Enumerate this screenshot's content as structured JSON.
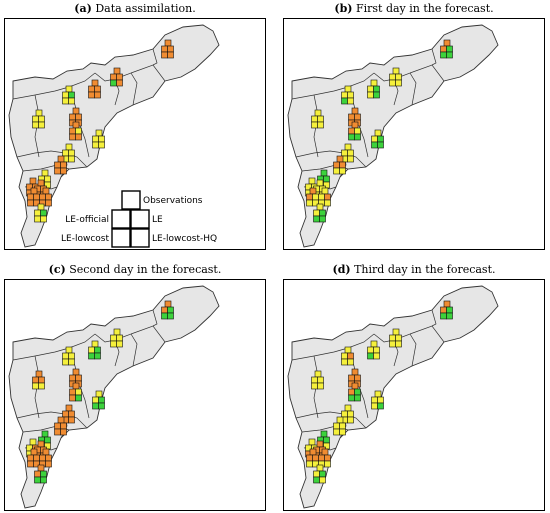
{
  "panels": [
    {
      "id": "a",
      "letter": "(a)",
      "caption": "Data assimilation.",
      "legend": true
    },
    {
      "id": "b",
      "letter": "(b)",
      "caption": "First day in the forecast.",
      "legend": false
    },
    {
      "id": "c",
      "letter": "(c)",
      "caption": "Second day in the forecast.",
      "legend": false
    },
    {
      "id": "d",
      "letter": "(d)",
      "caption": "Third day in the forecast.",
      "legend": false
    }
  ],
  "legend": {
    "observations": "Observations",
    "le": "LE",
    "le_official": "LE-official",
    "le_lowcost": "LE-lowcost",
    "le_lowcost_hq": "LE-lowcost-HQ"
  },
  "colors": {
    "region_fill": "#e6e6e6",
    "border": "#333333",
    "orange": "#f08c32",
    "yellow": "#f5f03c",
    "green": "#3cd23c"
  },
  "stations": {
    "a": [
      [
        "orange",
        "orange",
        "orange",
        "orange"
      ],
      [
        "orange",
        "orange",
        "green",
        "orange"
      ],
      [
        "orange",
        "orange",
        "orange",
        "orange"
      ],
      [
        "yellow",
        "green",
        "yellow",
        "yellow"
      ],
      [
        "yellow",
        "yellow",
        "yellow",
        "yellow"
      ],
      [
        "orange",
        "orange",
        "orange",
        "orange"
      ],
      [
        "orange",
        "yellow",
        "orange",
        "orange"
      ],
      [
        "yellow",
        "yellow",
        "yellow",
        "yellow"
      ],
      [
        "yellow",
        "yellow",
        "yellow",
        "yellow"
      ],
      [
        "orange",
        "orange",
        "orange",
        "orange"
      ],
      [
        "yellow",
        "yellow",
        "yellow",
        "yellow"
      ],
      [
        "orange",
        "orange",
        "orange",
        "orange"
      ],
      [
        "orange",
        "orange",
        "orange",
        "orange"
      ],
      [
        "orange",
        "orange",
        "orange",
        "orange"
      ],
      [
        "orange",
        "orange",
        "orange",
        "orange"
      ],
      [
        "yellow",
        "green",
        "yellow",
        "yellow"
      ]
    ],
    "b": [
      [
        "orange",
        "green",
        "green",
        "green"
      ],
      [
        "yellow",
        "yellow",
        "yellow",
        "yellow"
      ],
      [
        "yellow",
        "green",
        "yellow",
        "green"
      ],
      [
        "yellow",
        "yellow",
        "green",
        "yellow"
      ],
      [
        "yellow",
        "yellow",
        "yellow",
        "yellow"
      ],
      [
        "orange",
        "orange",
        "orange",
        "orange"
      ],
      [
        "orange",
        "yellow",
        "green",
        "green"
      ],
      [
        "yellow",
        "green",
        "green",
        "green"
      ],
      [
        "yellow",
        "yellow",
        "yellow",
        "yellow"
      ],
      [
        "orange",
        "orange",
        "yellow",
        "yellow"
      ],
      [
        "green",
        "green",
        "yellow",
        "yellow"
      ],
      [
        "yellow",
        "yellow",
        "yellow",
        "yellow"
      ],
      [
        "yellow",
        "yellow",
        "yellow",
        "yellow"
      ],
      [
        "orange",
        "yellow",
        "yellow",
        "yellow"
      ],
      [
        "yellow",
        "orange",
        "yellow",
        "yellow"
      ],
      [
        "yellow",
        "green",
        "green",
        "green"
      ]
    ],
    "c": [
      [
        "orange",
        "green",
        "green",
        "green"
      ],
      [
        "yellow",
        "yellow",
        "yellow",
        "yellow"
      ],
      [
        "yellow",
        "green",
        "green",
        "green"
      ],
      [
        "yellow",
        "yellow",
        "yellow",
        "yellow"
      ],
      [
        "orange",
        "orange",
        "yellow",
        "yellow"
      ],
      [
        "orange",
        "orange",
        "orange",
        "orange"
      ],
      [
        "orange",
        "yellow",
        "orange",
        "green"
      ],
      [
        "yellow",
        "green",
        "green",
        "green"
      ],
      [
        "orange",
        "orange",
        "orange",
        "orange"
      ],
      [
        "orange",
        "orange",
        "orange",
        "orange"
      ],
      [
        "green",
        "green",
        "yellow",
        "yellow"
      ],
      [
        "yellow",
        "orange",
        "yellow",
        "yellow"
      ],
      [
        "orange",
        "orange",
        "orange",
        "orange"
      ],
      [
        "orange",
        "orange",
        "orange",
        "orange"
      ],
      [
        "orange",
        "orange",
        "orange",
        "orange"
      ],
      [
        "orange",
        "green",
        "green",
        "green"
      ]
    ],
    "d": [
      [
        "orange",
        "green",
        "green",
        "green"
      ],
      [
        "yellow",
        "yellow",
        "yellow",
        "yellow"
      ],
      [
        "yellow",
        "yellow",
        "green",
        "yellow"
      ],
      [
        "yellow",
        "orange",
        "yellow",
        "yellow"
      ],
      [
        "yellow",
        "yellow",
        "yellow",
        "yellow"
      ],
      [
        "orange",
        "orange",
        "orange",
        "orange"
      ],
      [
        "orange",
        "green",
        "green",
        "green"
      ],
      [
        "yellow",
        "yellow",
        "yellow",
        "green"
      ],
      [
        "yellow",
        "yellow",
        "yellow",
        "yellow"
      ],
      [
        "yellow",
        "yellow",
        "yellow",
        "yellow"
      ],
      [
        "green",
        "green",
        "yellow",
        "yellow"
      ],
      [
        "yellow",
        "yellow",
        "orange",
        "yellow"
      ],
      [
        "orange",
        "orange",
        "orange",
        "orange"
      ],
      [
        "orange",
        "orange",
        "yellow",
        "yellow"
      ],
      [
        "orange",
        "orange",
        "yellow",
        "yellow"
      ],
      [
        "yellow",
        "green",
        "green",
        "yellow"
      ]
    ]
  }
}
